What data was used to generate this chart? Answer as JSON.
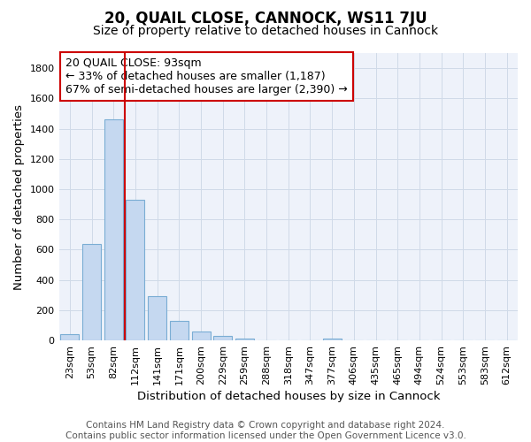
{
  "title": "20, QUAIL CLOSE, CANNOCK, WS11 7JU",
  "subtitle": "Size of property relative to detached houses in Cannock",
  "xlabel": "Distribution of detached houses by size in Cannock",
  "ylabel": "Number of detached properties",
  "annotation_line1": "20 QUAIL CLOSE: 93sqm",
  "annotation_line2": "← 33% of detached houses are smaller (1,187)",
  "annotation_line3": "67% of semi-detached houses are larger (2,390) →",
  "bar_labels": [
    "23sqm",
    "53sqm",
    "82sqm",
    "112sqm",
    "141sqm",
    "171sqm",
    "200sqm",
    "229sqm",
    "259sqm",
    "288sqm",
    "318sqm",
    "347sqm",
    "377sqm",
    "406sqm",
    "435sqm",
    "465sqm",
    "494sqm",
    "524sqm",
    "553sqm",
    "583sqm",
    "612sqm"
  ],
  "bar_values": [
    40,
    640,
    1460,
    930,
    290,
    130,
    60,
    30,
    15,
    0,
    0,
    0,
    10,
    0,
    0,
    0,
    0,
    0,
    0,
    0,
    0
  ],
  "bar_color": "#c5d8f0",
  "bar_edge_color": "#7aadd4",
  "red_line_color": "#cc0000",
  "annotation_box_color": "#cc0000",
  "grid_color": "#d0dae8",
  "background_color": "#eef2fa",
  "ylim": [
    0,
    1900
  ],
  "yticks": [
    0,
    200,
    400,
    600,
    800,
    1000,
    1200,
    1400,
    1600,
    1800
  ],
  "footer_text": "Contains HM Land Registry data © Crown copyright and database right 2024.\nContains public sector information licensed under the Open Government Licence v3.0.",
  "title_fontsize": 12,
  "subtitle_fontsize": 10,
  "axis_label_fontsize": 9.5,
  "tick_fontsize": 8,
  "annotation_fontsize": 9,
  "footer_fontsize": 7.5
}
